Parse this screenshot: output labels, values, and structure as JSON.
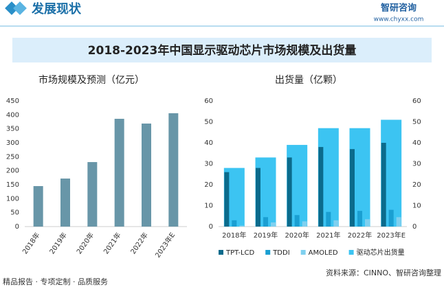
{
  "header": {
    "title": "发展现状",
    "logo": "智研咨询",
    "url": "www.chyxx.com"
  },
  "banner": "2018-2023年中国显示驱动芯片市场规模及出货量",
  "chart_data": [
    {
      "type": "bar",
      "title": "市场规模及预测（亿元）",
      "categories": [
        "2018年",
        "2019年",
        "2020年",
        "2021年",
        "2022年",
        "2023年E"
      ],
      "values": [
        145,
        172,
        231,
        386,
        369,
        406
      ],
      "color": "#6896a8",
      "ylim": [
        0,
        450
      ],
      "yticks": [
        0,
        50,
        100,
        150,
        200,
        250,
        300,
        350,
        400,
        450
      ]
    },
    {
      "type": "bar",
      "title": "出货量（亿颗）",
      "categories": [
        "2018年",
        "2019年",
        "2020年",
        "2021年",
        "2022年",
        "2023年E"
      ],
      "series": [
        {
          "name": "TPT-LCD",
          "color": "#0b6b8c",
          "values": [
            26,
            28,
            33,
            38,
            37,
            40
          ]
        },
        {
          "name": "TDDI",
          "color": "#1a9fd2",
          "values": [
            3,
            4.5,
            5.5,
            7,
            7.5,
            8
          ]
        },
        {
          "name": "AMOLED",
          "color": "#7fd0ef",
          "values": [
            0.5,
            2,
            2.5,
            3,
            3.5,
            4.5
          ]
        },
        {
          "name": "驱动芯片出货量",
          "color": "#3cc4f2",
          "values": [
            28,
            33,
            39,
            47,
            47,
            51
          ],
          "axis": "y2"
        }
      ],
      "ylim": [
        0,
        60
      ],
      "yticks": [
        0,
        10,
        20,
        30,
        40,
        50,
        60
      ],
      "y2lim": [
        0,
        60
      ],
      "y2ticks": [
        0,
        10,
        20,
        30,
        40,
        50,
        60
      ],
      "legend": "bottom"
    }
  ],
  "footer": {
    "left": "精品报告 · 专项定制 · 品质服务",
    "source": "资料来源：CINNO、智研咨询整理"
  }
}
